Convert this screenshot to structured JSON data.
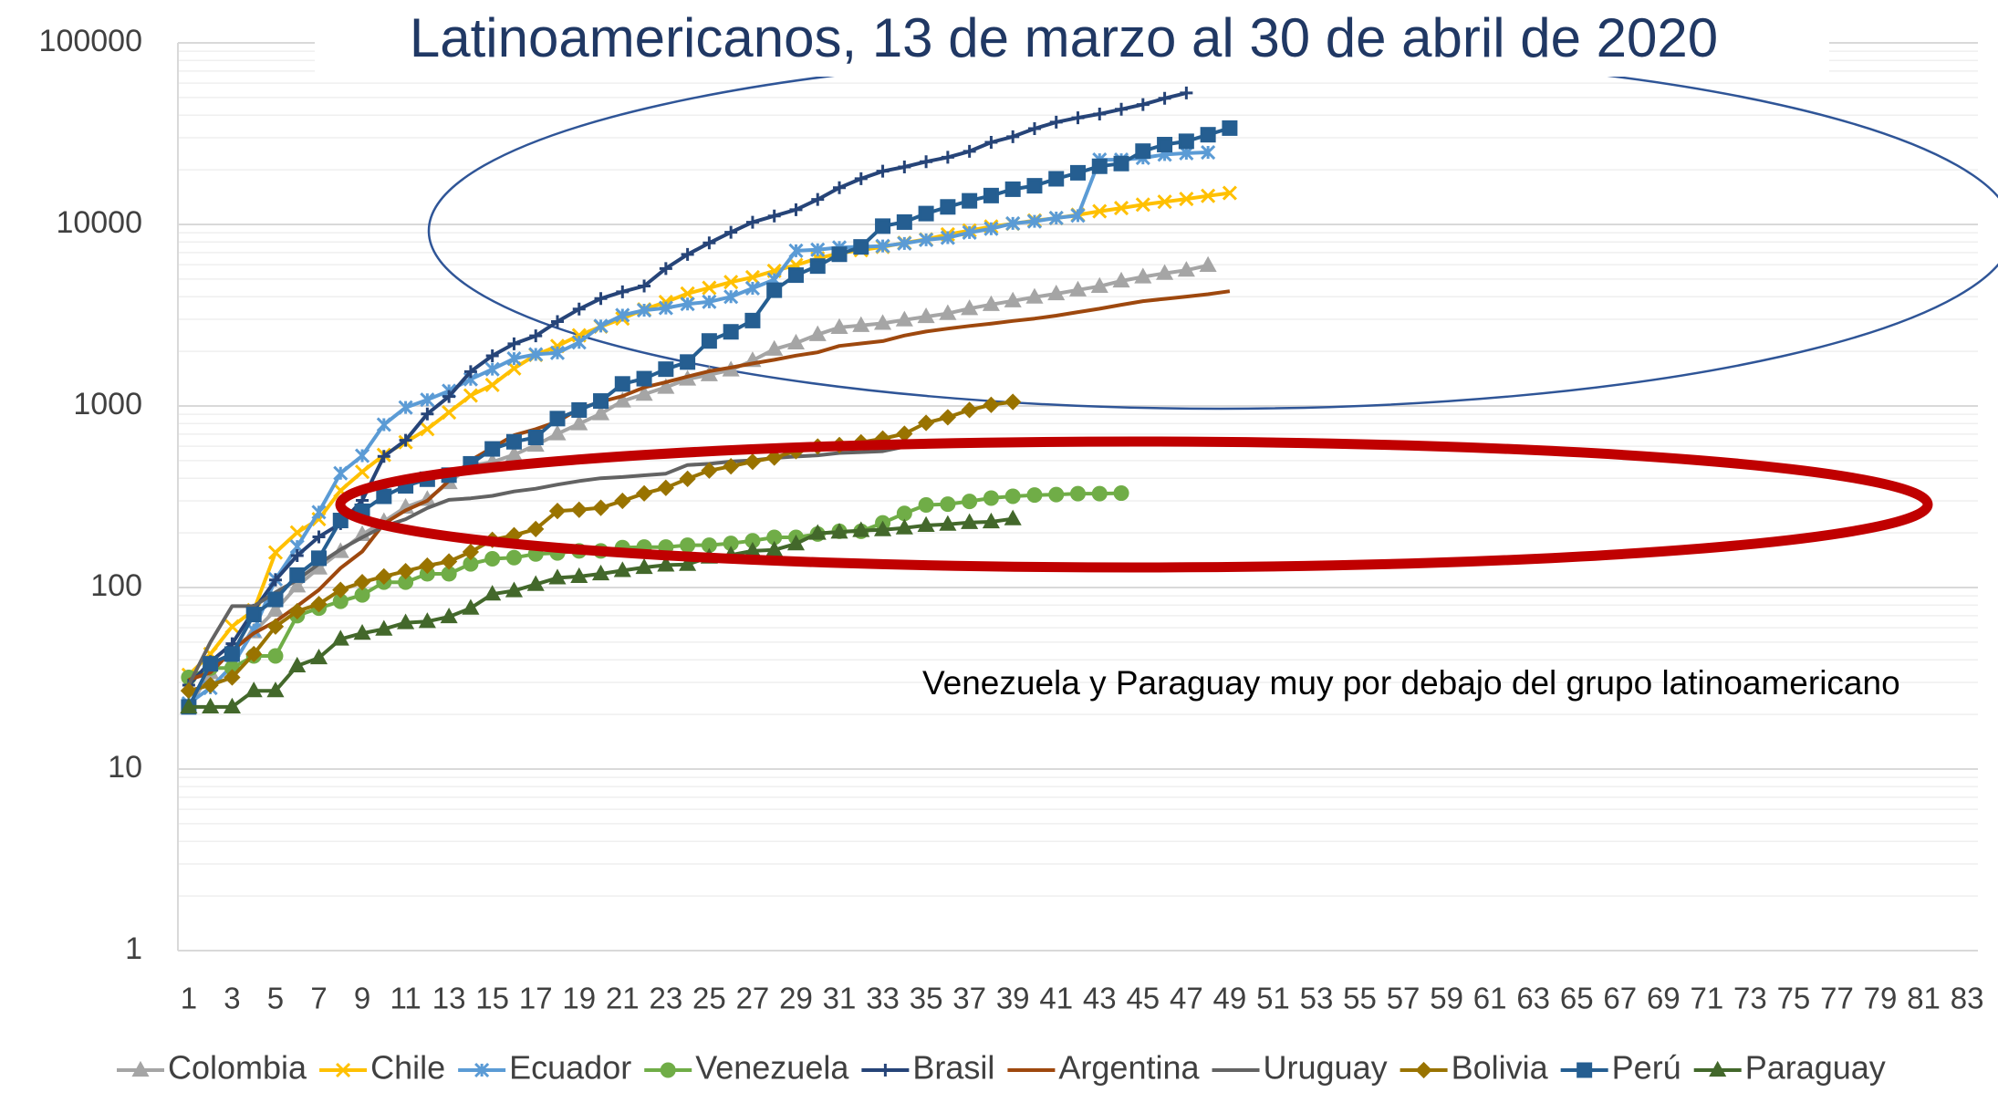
{
  "chart_data": {
    "type": "line",
    "title": "Latinoamericanos, 13 de marzo al 30 de abril de 2020",
    "annotation": "Venezuela y Paraguay muy por debajo del grupo latinoamericano",
    "categories": [
      1,
      null,
      3,
      null,
      5,
      null,
      7,
      null,
      9,
      null,
      11,
      null,
      13,
      null,
      15,
      null,
      17,
      null,
      19,
      null,
      21,
      null,
      23,
      null,
      25,
      null,
      27,
      null,
      29,
      null,
      31,
      null,
      33,
      null,
      35,
      null,
      37,
      null,
      39,
      null,
      41,
      null,
      43,
      null,
      45,
      null,
      47,
      null,
      49,
      null,
      51,
      null,
      53,
      null,
      55,
      null,
      57,
      null,
      59,
      null,
      61,
      null,
      63,
      null,
      65,
      null,
      67,
      null,
      69,
      null,
      71,
      null,
      73,
      null,
      75,
      null,
      77,
      null,
      79,
      null,
      81,
      null,
      83
    ],
    "ylim": [
      1,
      100000
    ],
    "yticks": [
      1,
      10,
      100,
      1000,
      10000,
      100000
    ],
    "log_y": true,
    "grid": true,
    "minor_grid": true,
    "legend": "bottom",
    "series": [
      {
        "name": "Colombia",
        "color": "#a5a5a5",
        "marker": "triangle",
        "values": [
          22,
          34,
          45,
          57,
          75,
          102,
          128,
          158,
          196,
          231,
          277,
          306,
          378,
          470,
          491,
          539,
          608,
          702,
          798,
          906,
          1065,
          1161,
          1267,
          1406,
          1485,
          1579,
          1780,
          2054,
          2223,
          2473,
          2709,
          2776,
          2852,
          2979,
          3105,
          3233,
          3439,
          3621,
          3792,
          3977,
          4149,
          4356,
          4561,
          4881,
          5142,
          5379,
          5597,
          5949,
          null,
          null,
          null,
          null,
          null,
          null,
          null,
          null,
          null,
          null,
          null,
          null,
          null,
          null,
          null,
          null,
          null,
          null,
          null,
          null,
          null,
          null,
          null,
          null,
          null,
          null,
          null,
          null,
          null,
          null,
          null,
          null,
          null,
          null,
          null
        ]
      },
      {
        "name": "Chile",
        "color": "#ffc000",
        "marker": "x",
        "values": [
          33,
          43,
          61,
          75,
          156,
          201,
          238,
          342,
          434,
          537,
          632,
          746,
          922,
          1142,
          1306,
          1610,
          1909,
          2139,
          2449,
          2738,
          3031,
          3404,
          3737,
          4161,
          4471,
          4815,
          5116,
          5546,
          5972,
          6501,
          6927,
          7213,
          7525,
          7917,
          8273,
          8807,
          9252,
          9730,
          10088,
          10505,
          10832,
          11296,
          11812,
          12306,
          12858,
          13331,
          13813,
          14365,
          14885,
          null,
          null,
          null,
          null,
          null,
          null,
          null,
          null,
          null,
          null,
          null,
          null,
          null,
          null,
          null,
          null,
          null,
          null,
          null,
          null,
          null,
          null,
          null,
          null,
          null,
          null,
          null,
          null,
          null,
          null,
          null,
          null,
          null,
          null
        ]
      },
      {
        "name": "Ecuador",
        "color": "#5b9bd5",
        "marker": "asterisk",
        "values": [
          23,
          28,
          37,
          58,
          111,
          168,
          260,
          426,
          532,
          789,
          981,
          1082,
          1211,
          1403,
          1595,
          1823,
          1924,
          1962,
          2240,
          2758,
          3163,
          3368,
          3465,
          3646,
          3747,
          3995,
          4450,
          4965,
          7161,
          7257,
          7466,
          7529,
          7603,
          7858,
          8225,
          8450,
          9022,
          9468,
          10128,
          10398,
          10850,
          11183,
          22719,
          22719,
          23240,
          24258,
          24675,
          24934,
          null,
          null,
          null,
          null,
          null,
          null,
          null,
          null,
          null,
          null,
          null,
          null,
          null,
          null,
          null,
          null,
          null,
          null,
          null,
          null,
          null,
          null,
          null,
          null,
          null,
          null,
          null,
          null,
          null,
          null,
          null,
          null,
          null,
          null,
          null
        ]
      },
      {
        "name": "Venezuela",
        "color": "#70ad47",
        "marker": "circle",
        "values": [
          32,
          36,
          36,
          42,
          42,
          70,
          77,
          84,
          91,
          107,
          107,
          119,
          119,
          135,
          144,
          146,
          153,
          155,
          159,
          159,
          166,
          167,
          167,
          171,
          171,
          175,
          181,
          189,
          189,
          197,
          204,
          204,
          227,
          256,
          285,
          288,
          298,
          311,
          318,
          323,
          325,
          329,
          329,
          331,
          null,
          null,
          null,
          null,
          null,
          null,
          null,
          null,
          null,
          null,
          null,
          null,
          null,
          null,
          null,
          null,
          null,
          null,
          null,
          null,
          null,
          null,
          null,
          null,
          null,
          null,
          null,
          null,
          null,
          null,
          null,
          null,
          null,
          null,
          null,
          null,
          null,
          null,
          null
        ]
      },
      {
        "name": "Brasil",
        "color": "#264478",
        "marker": "plus",
        "values": [
          29,
          39,
          49,
          75,
          110,
          150,
          190,
          225,
          302,
          528,
          647,
          904,
          1128,
          1546,
          1891,
          2201,
          2433,
          2915,
          3417,
          3904,
          4256,
          4579,
          5717,
          6836,
          7910,
          9056,
          10278,
          11130,
          12056,
          13717,
          15927,
          17857,
          19638,
          20727,
          22169,
          23430,
          25262,
          28320,
          30425,
          33682,
          36599,
          38654,
          40581,
          43079,
          45757,
          49492,
          52995,
          null,
          null,
          null,
          null,
          null,
          null,
          null,
          null,
          null,
          null,
          null,
          null,
          null,
          null,
          null,
          null,
          null,
          null,
          null,
          null,
          null,
          null,
          null,
          null,
          null,
          null,
          null,
          null,
          null,
          null,
          null,
          null,
          null,
          null,
          null,
          null
        ]
      },
      {
        "name": "Argentina",
        "color": "#9e480e",
        "marker": "none",
        "values": [
          31,
          34,
          45,
          56,
          65,
          79,
          97,
          128,
          158,
          225,
          266,
          301,
          387,
          502,
          589,
          690,
          745,
          820,
          966,
          1054,
          1133,
          1265,
          1353,
          1451,
          1554,
          1628,
          1715,
          1795,
          1894,
          1975,
          2142,
          2208,
          2277,
          2443,
          2571,
          2669,
          2758,
          2839,
          2941,
          3031,
          3144,
          3288,
          3435,
          3607,
          3780,
          3892,
          4003,
          4127,
          4285,
          null,
          null,
          null,
          null,
          null,
          null,
          null,
          null,
          null,
          null,
          null,
          null,
          null,
          null,
          null,
          null,
          null,
          null,
          null,
          null,
          null,
          null,
          null,
          null,
          null,
          null,
          null,
          null,
          null,
          null,
          null,
          null,
          null,
          null
        ]
      },
      {
        "name": "Uruguay",
        "color": "#636363",
        "marker": "none",
        "values": [
          29,
          50,
          79,
          79,
          94,
          110,
          135,
          162,
          189,
          217,
          238,
          274,
          304,
          310,
          320,
          338,
          350,
          369,
          386,
          400,
          406,
          415,
          424,
          473,
          480,
          494,
          502,
          517,
          527,
          535,
          551,
          557,
          563,
          596,
          606,
          620,
          625,
          630,
          646,
          652,
          null,
          null,
          null,
          null,
          null,
          null,
          null,
          null,
          null,
          null,
          null,
          null,
          null,
          null,
          null,
          null,
          null,
          null,
          null,
          null,
          null,
          null,
          null,
          null,
          null,
          null,
          null,
          null,
          null,
          null,
          null,
          null,
          null,
          null,
          null,
          null,
          null,
          null,
          null,
          null,
          null,
          null,
          null
        ]
      },
      {
        "name": "Bolivia",
        "color": "#997300",
        "marker": "diamond",
        "values": [
          27,
          29,
          32,
          43,
          61,
          74,
          81,
          97,
          107,
          115,
          123,
          132,
          139,
          157,
          183,
          194,
          210,
          264,
          268,
          275,
          300,
          330,
          354,
          397,
          441,
          465,
          493,
          520,
          564,
          598,
          609,
          630,
          661,
          703,
          807,
          866,
          950,
          1014,
          1053,
          null,
          null,
          null,
          null,
          null,
          null,
          null,
          null,
          null,
          null,
          null,
          null,
          null,
          null,
          null,
          null,
          null,
          null,
          null,
          null,
          null,
          null,
          null,
          null,
          null,
          null,
          null,
          null,
          null,
          null,
          null,
          null,
          null,
          null,
          null,
          null,
          null,
          null,
          null,
          null,
          null,
          null,
          null,
          null
        ]
      },
      {
        "name": "Perú",
        "color": "#255e91",
        "marker": "square",
        "values": [
          22,
          38,
          43,
          71,
          86,
          117,
          145,
          234,
          263,
          318,
          363,
          395,
          416,
          480,
          580,
          635,
          671,
          852,
          950,
          1065,
          1323,
          1414,
          1595,
          1746,
          2281,
          2561,
          2954,
          4342,
          5256,
          5897,
          6848,
          7519,
          9784,
          10303,
          11475,
          12491,
          13489,
          14420,
          15628,
          16325,
          17837,
          19250,
          20914,
          21648,
          25331,
          27517,
          28699,
          31190,
          33931,
          null,
          null,
          null,
          null,
          null,
          null,
          null,
          null,
          null,
          null,
          null,
          null,
          null,
          null,
          null,
          null,
          null,
          null,
          null,
          null,
          null,
          null,
          null,
          null,
          null,
          null,
          null,
          null,
          null,
          null,
          null,
          null,
          null,
          null
        ]
      },
      {
        "name": "Paraguay",
        "color": "#43682b",
        "marker": "triangle",
        "values": [
          22,
          22,
          22,
          27,
          27,
          37,
          41,
          52,
          56,
          59,
          64,
          65,
          69,
          77,
          92,
          96,
          104,
          113,
          115,
          119,
          124,
          129,
          133,
          134,
          147,
          151,
          159,
          161,
          174,
          199,
          202,
          206,
          208,
          213,
          220,
          223,
          228,
          230,
          239,
          null,
          null,
          null,
          null,
          null,
          null,
          null,
          null,
          null,
          null,
          null,
          null,
          null,
          null,
          null,
          null,
          null,
          null,
          null,
          null,
          null,
          null,
          null,
          null,
          null,
          null,
          null,
          null,
          null,
          null,
          null,
          null,
          null,
          null,
          null,
          null,
          null,
          null,
          null,
          null,
          null,
          null,
          null,
          null
        ]
      }
    ]
  }
}
